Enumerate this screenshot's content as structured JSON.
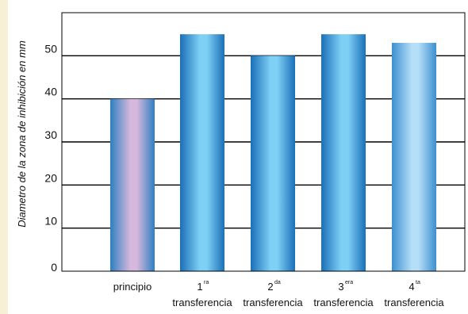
{
  "chart_data": {
    "type": "bar",
    "categories": [
      {
        "main": "principio",
        "sup": "",
        "line2": ""
      },
      {
        "main": "1",
        "sup": "ra",
        "line2": "transferencia"
      },
      {
        "main": "2",
        "sup": "da",
        "line2": "transferencia"
      },
      {
        "main": "3",
        "sup": "era",
        "line2": "transferencia"
      },
      {
        "main": "4",
        "sup": "ta",
        "line2": "transferencia"
      }
    ],
    "values": [
      40,
      55,
      50,
      55,
      53
    ],
    "ylabel": "Diametro de la zona de inhibición en mm",
    "xlabel": "",
    "ylim": [
      0,
      60
    ],
    "yticks": [
      0,
      10,
      20,
      30,
      40,
      50
    ],
    "grid": true,
    "colors": {
      "first_bar_light": "#d6b8dc",
      "first_bar_dark": "#2d7fc2",
      "bar_light": "#7fd0f5",
      "bar_dark": "#1a6fb8",
      "last_bar_light": "#b5def7",
      "last_bar_dark": "#3d8fd0",
      "gridline": "#000000",
      "page_background": "#f7f0d6"
    }
  }
}
